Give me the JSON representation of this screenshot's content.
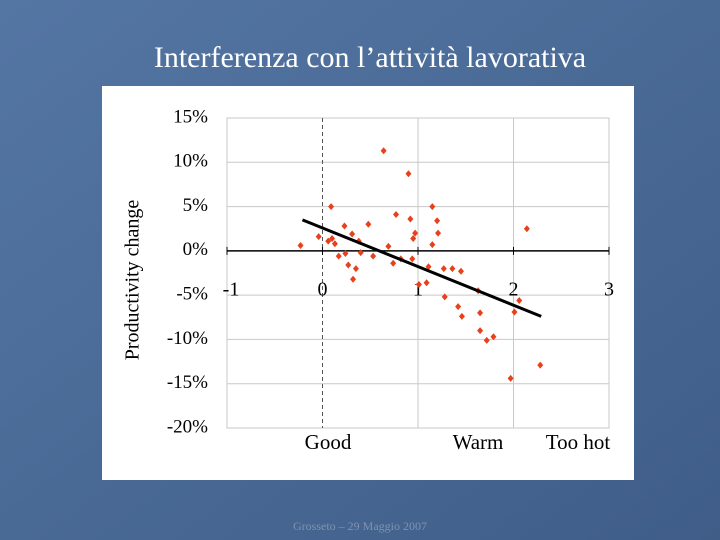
{
  "chart_data": {
    "type": "scatter",
    "title": "Interferenza con l’attività lavorativa",
    "ylabel": "Productivity change",
    "x_annotations": [
      "Good",
      "Warm",
      "Too hot"
    ],
    "x": [
      -0.23,
      -0.04,
      0.06,
      0.1,
      0.13,
      0.09,
      0.23,
      0.31,
      0.24,
      0.27,
      0.32,
      0.35,
      0.4,
      0.48,
      0.38,
      0.64,
      0.69,
      0.74,
      0.77,
      0.9,
      0.92,
      0.95,
      0.97,
      0.94,
      1.01,
      1.11,
      1.15,
      1.2,
      1.21,
      1.15,
      1.27,
      1.36,
      1.45,
      1.28,
      1.42,
      1.46,
      1.63,
      1.65,
      1.65,
      1.72,
      1.79,
      1.97,
      2.01,
      2.06,
      2.14,
      2.28,
      0.82,
      1.09,
      0.53,
      0.17
    ],
    "values": [
      0.6,
      1.6,
      1.1,
      1.4,
      0.8,
      5.0,
      2.8,
      1.9,
      -0.3,
      -1.6,
      -3.2,
      -2.0,
      -0.2,
      3.0,
      1.1,
      11.3,
      0.5,
      -1.4,
      4.1,
      8.7,
      3.6,
      1.4,
      2.0,
      -0.9,
      -3.8,
      -1.8,
      5.0,
      3.4,
      2.0,
      0.7,
      -2.0,
      -2.0,
      -2.3,
      -5.2,
      -6.3,
      -7.4,
      -4.5,
      -7.0,
      -9.0,
      -10.1,
      -9.7,
      -14.4,
      -6.9,
      -5.6,
      2.5,
      -12.9,
      -0.9,
      -3.6,
      -0.6,
      -0.6
    ],
    "color": "#e8401c",
    "fit_line": {
      "x": [
        -0.21,
        2.29
      ],
      "values": [
        3.5,
        -7.4
      ],
      "color": "#000000"
    },
    "xlim": [
      -1,
      3
    ],
    "xticks": [
      -1,
      0,
      1,
      2,
      3
    ],
    "ylim": [
      -20,
      15
    ],
    "yticks": [
      {
        "value": -20,
        "label": "-20%"
      },
      {
        "value": -15,
        "label": "-15%"
      },
      {
        "value": -10,
        "label": "-10%"
      },
      {
        "value": -5,
        "label": "-5%"
      },
      {
        "value": 0,
        "label": "0%"
      },
      {
        "value": 5,
        "label": "5%"
      },
      {
        "value": 10,
        "label": "10%"
      },
      {
        "value": 15,
        "label": "15%"
      }
    ],
    "grid": true
  },
  "footer": "Grosseto – 29 Maggio 2007"
}
